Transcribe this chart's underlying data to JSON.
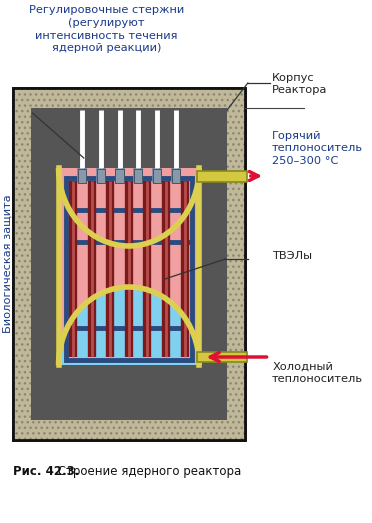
{
  "title_top": "Регулировочные стержни\n(регулируют\nинтенсивность течения\nядерной реакции)",
  "label_korpus": "Корпус\nРеактора",
  "label_hot": "Горячий\nтеплоноситель\n250–300 °C",
  "label_tvely": "ТВЭЛы",
  "label_cold": "Холодный\nтеплоноситель",
  "label_bio": "Биологическая защита",
  "caption_bold": "Рис. 42.3.",
  "caption_normal": " Строение ядерного реактора",
  "colors": {
    "background": "#ffffff",
    "bio_wall": "#c8c0a0",
    "inner_dark": "#606060",
    "vessel_gold": "#ddd050",
    "vessel_pink": "#f0a0a0",
    "vessel_blue": "#80d0f0",
    "core_blue": "#2a4a80",
    "fuel_dark": "#8b2020",
    "fuel_light": "#e08080",
    "ctrl_gray": "#8899aa",
    "ctrl_light": "#c0ccdd",
    "pipe_gold": "#d4c840",
    "arrow_red": "#dd1133",
    "text_dark": "#222222",
    "text_blue": "#1a3a8a",
    "text_red_hot": "#cc2200",
    "caption_bold_color": "#333333",
    "line_color": "#333333"
  }
}
